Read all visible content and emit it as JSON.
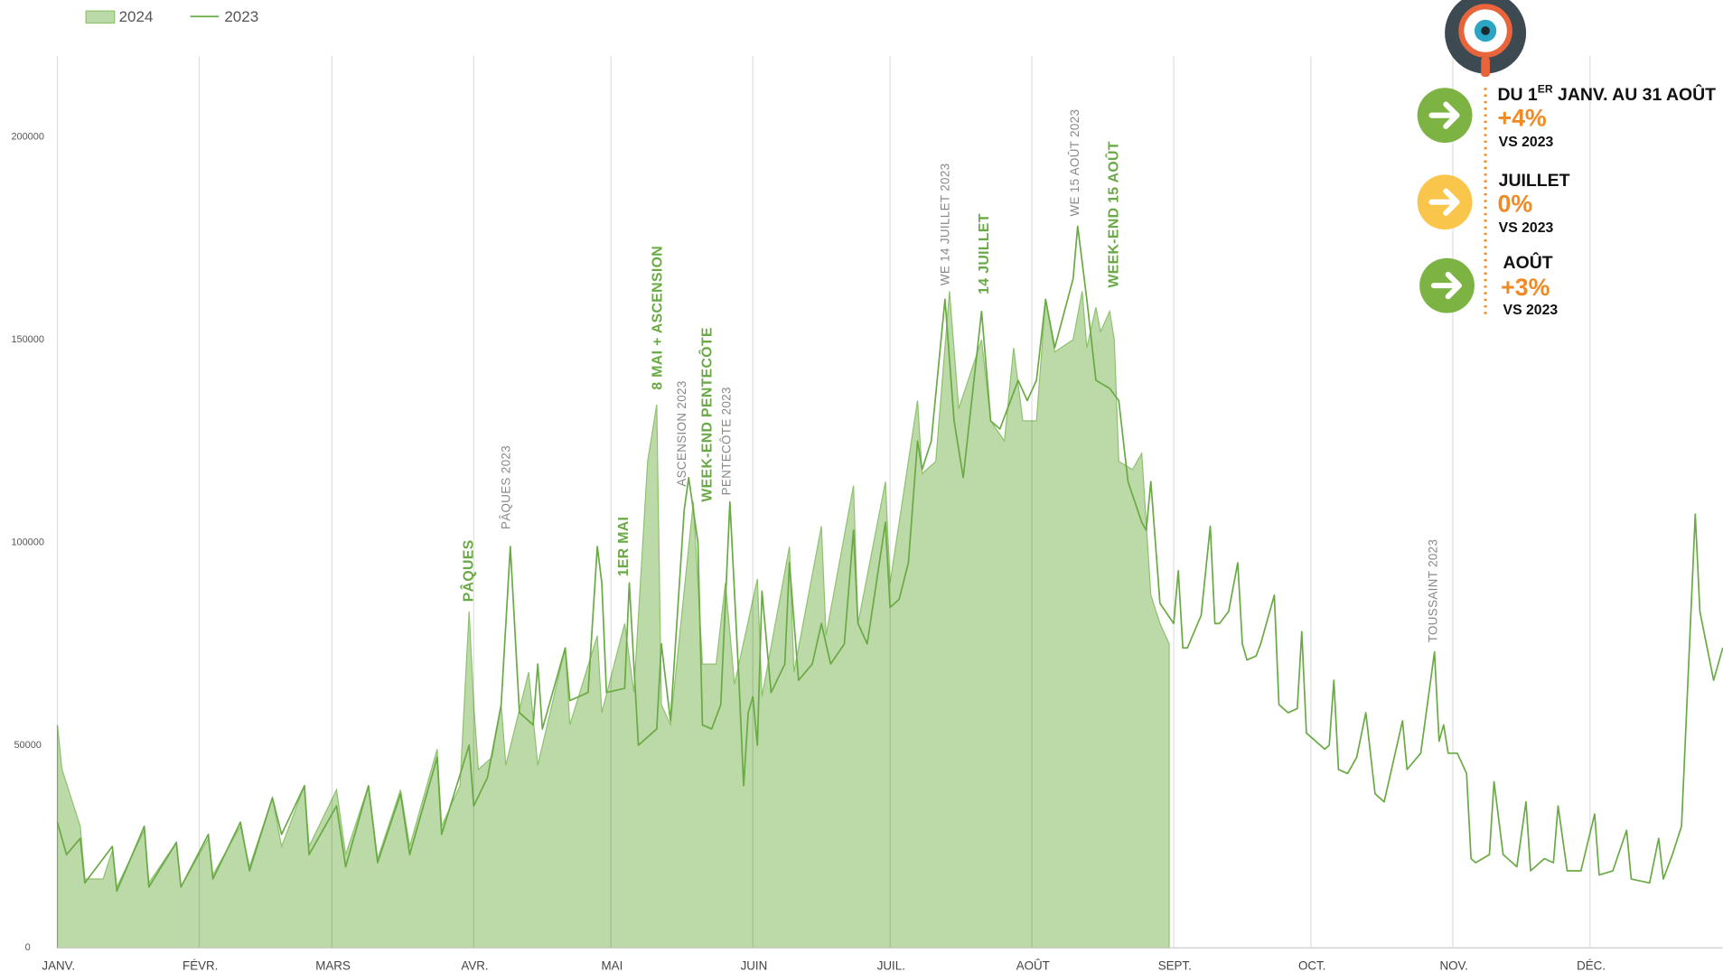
{
  "chart_data": {
    "type": "line",
    "xlim": [
      0,
      364
    ],
    "ylim": [
      0,
      220000
    ],
    "xticks": [
      {
        "value": 0,
        "label": "JANV."
      },
      {
        "value": 31,
        "label": "FÉVR."
      },
      {
        "value": 60,
        "label": "MARS"
      },
      {
        "value": 91,
        "label": "AVR."
      },
      {
        "value": 121,
        "label": "MAI"
      },
      {
        "value": 152,
        "label": "JUIN"
      },
      {
        "value": 182,
        "label": "JUIL."
      },
      {
        "value": 213,
        "label": "AOÛT"
      },
      {
        "value": 244,
        "label": "SEPT."
      },
      {
        "value": 274,
        "label": "OCT."
      },
      {
        "value": 305,
        "label": "NOV."
      },
      {
        "value": 335,
        "label": "DÉC."
      }
    ],
    "yticks": [
      0,
      50000,
      100000,
      150000,
      200000
    ],
    "grid": "x",
    "legend": "top-left",
    "series": [
      {
        "name": "2024",
        "style": "area",
        "color": "#bcd9a8",
        "line_color": "#8fc26f",
        "x": [
          0,
          1,
          5,
          6,
          10,
          12,
          13,
          19,
          20,
          26,
          27,
          33,
          34,
          40,
          42,
          47,
          49,
          54,
          55,
          61,
          63,
          68,
          70,
          75,
          77,
          83,
          84,
          88,
          90,
          91,
          92,
          95,
          97,
          98,
          103,
          105,
          111,
          112,
          118,
          119,
          124,
          126,
          129,
          131,
          132,
          134,
          139,
          141,
          144,
          146,
          148,
          153,
          154,
          160,
          161,
          167,
          168,
          174,
          175,
          181,
          182,
          188,
          189,
          192,
          195,
          197,
          202,
          204,
          207,
          209,
          211,
          214,
          216,
          218,
          222,
          224,
          225,
          227,
          228,
          230,
          231,
          232,
          235,
          237,
          239,
          241,
          243
        ],
        "values": [
          55000,
          44000,
          30000,
          17000,
          17000,
          24000,
          15000,
          29000,
          16000,
          26000,
          15000,
          27000,
          18000,
          30000,
          20000,
          37000,
          25000,
          40000,
          25000,
          39000,
          23000,
          40000,
          22000,
          39000,
          25000,
          49000,
          30000,
          40000,
          83000,
          60000,
          44000,
          47000,
          60000,
          45000,
          68000,
          45000,
          74000,
          55000,
          77000,
          58000,
          80000,
          63000,
          120000,
          134000,
          60000,
          55000,
          110000,
          70000,
          70000,
          90000,
          65000,
          91000,
          62000,
          99000,
          68000,
          104000,
          77000,
          114000,
          80000,
          115000,
          90000,
          135000,
          117000,
          120000,
          162000,
          133000,
          150000,
          130000,
          125000,
          148000,
          130000,
          130000,
          160000,
          147000,
          150000,
          162000,
          148000,
          158000,
          152000,
          157000,
          150000,
          120000,
          118000,
          122000,
          87000,
          80000,
          75000
        ]
      },
      {
        "name": "2023",
        "style": "line",
        "color": "#6aaa45",
        "x": [
          0,
          2,
          5,
          6,
          12,
          13,
          19,
          20,
          26,
          27,
          33,
          34,
          40,
          42,
          47,
          49,
          54,
          55,
          61,
          63,
          68,
          70,
          75,
          77,
          83,
          84,
          90,
          91,
          94,
          97,
          99,
          101,
          104,
          105,
          106,
          111,
          112,
          116,
          118,
          119,
          120,
          124,
          125,
          127,
          131,
          132,
          134,
          137,
          138,
          140,
          141,
          143,
          145,
          147,
          149,
          150,
          151,
          152,
          153,
          154,
          156,
          159,
          160,
          162,
          165,
          167,
          169,
          172,
          174,
          175,
          177,
          181,
          182,
          184,
          186,
          188,
          189,
          191,
          194,
          196,
          198,
          202,
          204,
          206,
          210,
          212,
          214,
          216,
          218,
          222,
          223,
          225,
          227,
          230,
          232,
          234,
          237,
          238,
          239,
          241,
          244,
          245,
          246,
          247,
          250,
          252,
          253,
          254,
          256,
          258,
          259,
          260,
          262,
          263,
          266,
          267,
          269,
          271,
          272,
          273,
          277,
          278,
          279,
          280,
          282,
          284,
          286,
          288,
          290,
          294,
          295,
          298,
          301,
          302,
          303,
          304,
          306,
          308,
          309,
          310,
          313,
          314,
          316,
          319,
          321,
          322,
          325,
          327,
          328,
          330,
          333,
          336,
          337,
          340,
          343,
          344,
          348,
          350,
          351,
          353,
          355,
          358,
          359,
          362,
          364
        ],
        "values": [
          31000,
          23000,
          27000,
          16000,
          25000,
          14000,
          30000,
          15000,
          26000,
          15000,
          28000,
          17000,
          31000,
          19000,
          37000,
          28000,
          40000,
          23000,
          35000,
          20000,
          40000,
          21000,
          38000,
          23000,
          47000,
          28000,
          50000,
          35000,
          42000,
          60000,
          99000,
          58000,
          55000,
          70000,
          54000,
          74000,
          61000,
          63000,
          99000,
          90000,
          63000,
          64000,
          90000,
          50000,
          54000,
          75000,
          56000,
          108000,
          116000,
          100000,
          55000,
          54000,
          60000,
          110000,
          65000,
          40000,
          58000,
          62000,
          50000,
          88000,
          63000,
          70000,
          95000,
          66000,
          70000,
          80000,
          70000,
          75000,
          103000,
          80000,
          75000,
          105000,
          84000,
          86000,
          95000,
          125000,
          118000,
          125000,
          160000,
          130000,
          116000,
          157000,
          130000,
          128000,
          140000,
          135000,
          140000,
          160000,
          148000,
          165000,
          178000,
          160000,
          140000,
          138000,
          135000,
          115000,
          105000,
          103000,
          115000,
          85000,
          80000,
          93000,
          74000,
          74000,
          82000,
          104000,
          80000,
          80000,
          83000,
          95000,
          75000,
          71000,
          72000,
          75000,
          87000,
          60000,
          58000,
          59000,
          78000,
          53000,
          49000,
          50000,
          66000,
          44000,
          43000,
          47000,
          58000,
          38000,
          36000,
          56000,
          44000,
          48000,
          73000,
          51000,
          55000,
          48000,
          48000,
          43000,
          22000,
          21000,
          23000,
          41000,
          23000,
          20000,
          36000,
          19000,
          22000,
          21000,
          35000,
          19000,
          19000,
          33000,
          18000,
          19000,
          29000,
          17000,
          16000,
          27000,
          17000,
          23000,
          30000,
          107000,
          83000,
          66000,
          74000
        ]
      }
    ],
    "annotations": [
      "PÂQUES",
      "PÂQUES 2023",
      "1ER MAI",
      "8 MAI + ASCENSION",
      "ASCENSION 2023",
      "WEEK-END PENTECÔTE",
      "PENTECÔTE 2023",
      "WE 14 JUILLET 2023",
      "14 JUILLET",
      "WE 15 AOÛT 2023",
      "WEEK-END 15 AOÛT",
      "TOUSSAINT 2023"
    ]
  },
  "panel": {
    "period": {
      "lead": "DU 1",
      "sup": "ER",
      "rest": " JANV. AU 31 AOÛT",
      "change": "+4%",
      "vs": "VS 2023"
    },
    "july": {
      "label": "JUILLET",
      "change": "0%",
      "vs": "VS 2023"
    },
    "august": {
      "label": "AOÛT",
      "change": "+3%",
      "vs": "VS 2023"
    }
  }
}
